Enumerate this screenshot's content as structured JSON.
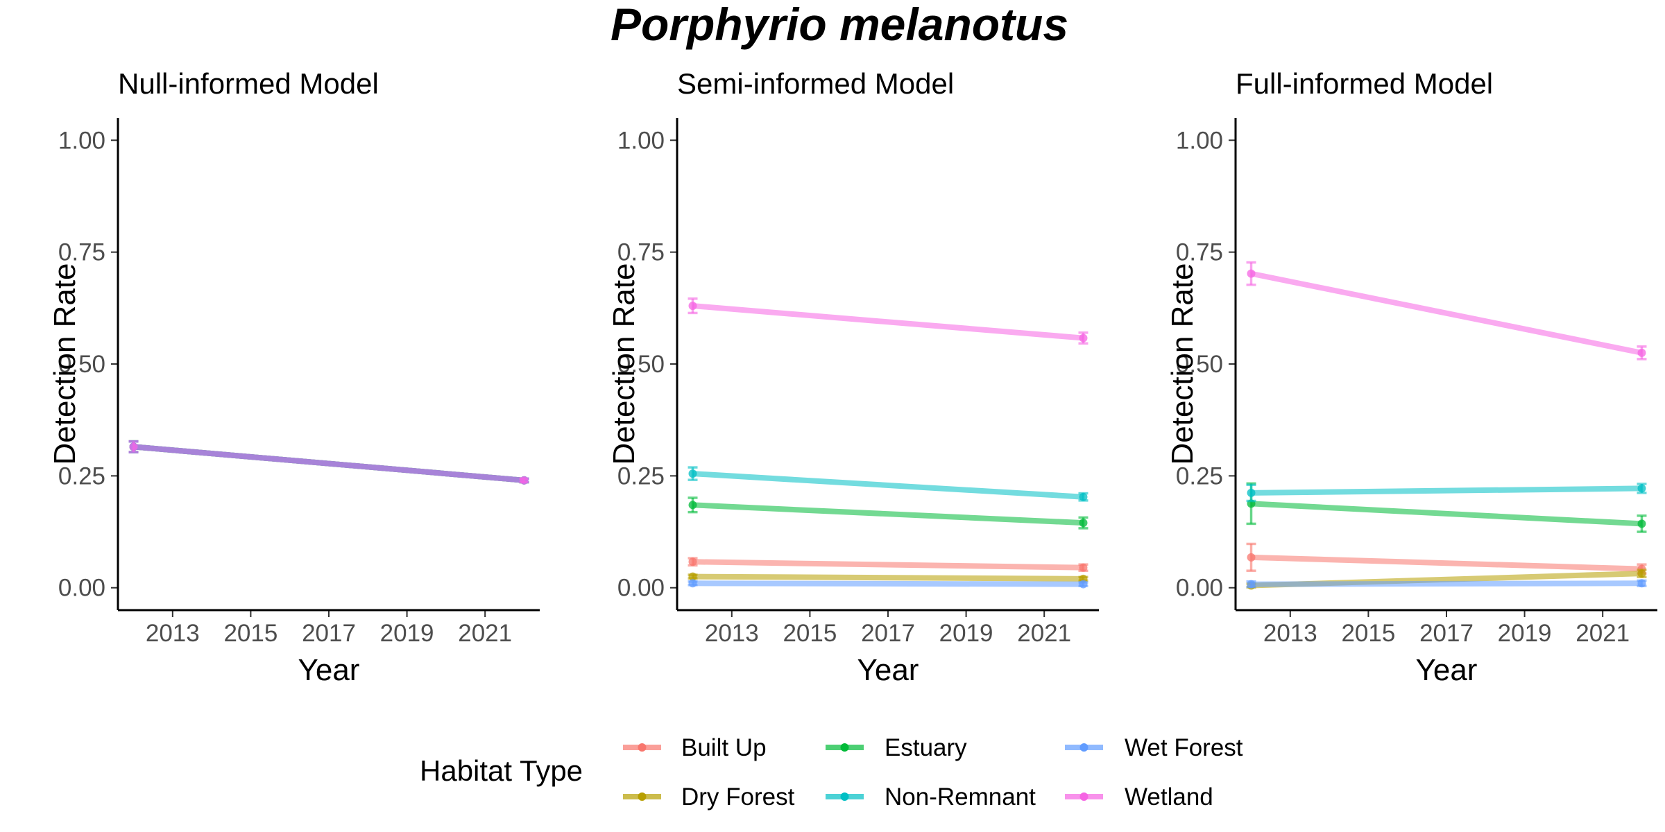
{
  "title": "Porphyrio melanotus",
  "chart_data": [
    {
      "type": "line",
      "title": "Null-informed Model",
      "xlabel": "Year",
      "ylabel": "Detection Rate",
      "xlim": [
        2011.6,
        2022.4
      ],
      "ylim": [
        -0.05,
        1.05
      ],
      "x_ticks": [
        "2013",
        "2015",
        "2017",
        "2019",
        "2021"
      ],
      "y_ticks": [
        "0.00",
        "0.25",
        "0.50",
        "0.75",
        "1.00"
      ],
      "x": [
        2012,
        2022
      ],
      "series": [
        {
          "name": "Built Up",
          "values": [
            0.315,
            0.24
          ],
          "error": [
            0.012,
            0.004
          ]
        },
        {
          "name": "Dry Forest",
          "values": [
            0.315,
            0.24
          ],
          "error": [
            0.012,
            0.004
          ]
        },
        {
          "name": "Estuary",
          "values": [
            0.315,
            0.24
          ],
          "error": [
            0.012,
            0.004
          ]
        },
        {
          "name": "Non-Remnant",
          "values": [
            0.315,
            0.24
          ],
          "error": [
            0.012,
            0.004
          ]
        },
        {
          "name": "Wet Forest",
          "values": [
            0.315,
            0.24
          ],
          "error": [
            0.012,
            0.004
          ]
        },
        {
          "name": "Wetland",
          "values": [
            0.315,
            0.24
          ],
          "error": [
            0.012,
            0.004
          ]
        }
      ]
    },
    {
      "type": "line",
      "title": "Semi-informed Model",
      "xlabel": "Year",
      "ylabel": "Detection Rate",
      "xlim": [
        2011.6,
        2022.4
      ],
      "ylim": [
        -0.05,
        1.05
      ],
      "x_ticks": [
        "2013",
        "2015",
        "2017",
        "2019",
        "2021"
      ],
      "y_ticks": [
        "0.00",
        "0.25",
        "0.50",
        "0.75",
        "1.00"
      ],
      "x": [
        2012,
        2022
      ],
      "series": [
        {
          "name": "Built Up",
          "values": [
            0.058,
            0.045
          ],
          "error": [
            0.008,
            0.007
          ]
        },
        {
          "name": "Dry Forest",
          "values": [
            0.025,
            0.02
          ],
          "error": [
            0.004,
            0.004
          ]
        },
        {
          "name": "Estuary",
          "values": [
            0.185,
            0.145
          ],
          "error": [
            0.016,
            0.012
          ]
        },
        {
          "name": "Non-Remnant",
          "values": [
            0.255,
            0.203
          ],
          "error": [
            0.014,
            0.008
          ]
        },
        {
          "name": "Wet Forest",
          "values": [
            0.01,
            0.008
          ],
          "error": [
            0.004,
            0.004
          ]
        },
        {
          "name": "Wetland",
          "values": [
            0.63,
            0.558
          ],
          "error": [
            0.016,
            0.012
          ]
        }
      ]
    },
    {
      "type": "line",
      "title": "Full-informed Model",
      "xlabel": "Year",
      "ylabel": "Detection Rate",
      "xlim": [
        2011.6,
        2022.4
      ],
      "ylim": [
        -0.05,
        1.05
      ],
      "x_ticks": [
        "2013",
        "2015",
        "2017",
        "2019",
        "2021"
      ],
      "y_ticks": [
        "0.00",
        "0.25",
        "0.50",
        "0.75",
        "1.00"
      ],
      "x": [
        2012,
        2022
      ],
      "series": [
        {
          "name": "Built Up",
          "values": [
            0.068,
            0.042
          ],
          "error": [
            0.03,
            0.01
          ]
        },
        {
          "name": "Dry Forest",
          "values": [
            0.005,
            0.032
          ],
          "error": [
            0.004,
            0.008
          ]
        },
        {
          "name": "Estuary",
          "values": [
            0.188,
            0.143
          ],
          "error": [
            0.045,
            0.018
          ]
        },
        {
          "name": "Non-Remnant",
          "values": [
            0.212,
            0.222
          ],
          "error": [
            0.018,
            0.01
          ]
        },
        {
          "name": "Wet Forest",
          "values": [
            0.008,
            0.01
          ],
          "error": [
            0.006,
            0.006
          ]
        },
        {
          "name": "Wetland",
          "values": [
            0.702,
            0.525
          ],
          "error": [
            0.025,
            0.014
          ]
        }
      ]
    }
  ],
  "legend": {
    "title": "Habitat Type",
    "position": "bottom",
    "items": [
      {
        "name": "Built Up",
        "color": "#F8766D"
      },
      {
        "name": "Dry Forest",
        "color": "#B79F00"
      },
      {
        "name": "Estuary",
        "color": "#00BA38"
      },
      {
        "name": "Non-Remnant",
        "color": "#00BFC4"
      },
      {
        "name": "Wet Forest",
        "color": "#619CFF"
      },
      {
        "name": "Wetland",
        "color": "#F564E3"
      }
    ]
  }
}
